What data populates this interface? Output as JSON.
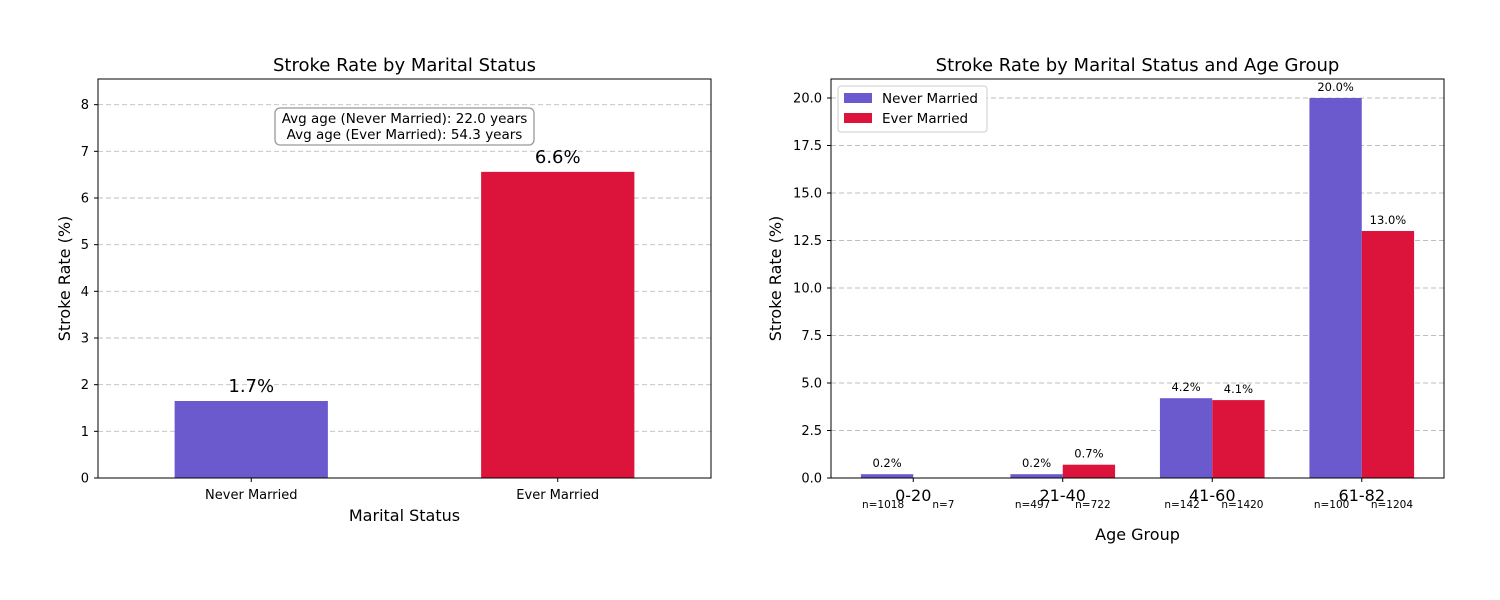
{
  "chart_data": [
    {
      "type": "bar",
      "title": "Stroke Rate by Marital Status",
      "xlabel": "Marital Status",
      "ylabel": "Stroke Rate (%)",
      "categories": [
        "Never Married",
        "Ever Married"
      ],
      "values": [
        1.65,
        6.56
      ],
      "value_labels": [
        "1.7%",
        "6.6%"
      ],
      "colors": [
        "#6a5acd",
        "#dc143c"
      ],
      "ylim": [
        0,
        8.55
      ],
      "yticks": [
        0,
        1,
        2,
        3,
        4,
        5,
        6,
        7,
        8
      ],
      "ytick_labels": [
        "0",
        "1",
        "2",
        "3",
        "4",
        "5",
        "6",
        "7",
        "8"
      ],
      "grid": true,
      "annotation": [
        "Avg age (Never Married): 22.0 years",
        "Avg age (Ever Married): 54.3 years"
      ]
    },
    {
      "type": "bar",
      "title": "Stroke Rate by Marital Status and Age Group",
      "xlabel": "Age Group",
      "ylabel": "Stroke Rate (%)",
      "categories": [
        "0-20",
        "21-40",
        "41-60",
        "61-82"
      ],
      "series": [
        {
          "name": "Never Married",
          "color": "#6a5acd",
          "values": [
            0.2,
            0.2,
            4.2,
            20.0
          ],
          "value_labels": [
            "0.2%",
            "0.2%",
            "4.2%",
            "20.0%"
          ],
          "counts": [
            "n=1018",
            "n=497",
            "n=142",
            "n=100"
          ]
        },
        {
          "name": "Ever Married",
          "color": "#dc143c",
          "values": [
            0.0,
            0.7,
            4.1,
            13.0
          ],
          "value_labels": [
            "",
            "0.7%",
            "4.1%",
            "13.0%"
          ],
          "counts": [
            "n=7",
            "n=722",
            "n=1420",
            "n=1204"
          ]
        }
      ],
      "ylim": [
        0,
        21
      ],
      "yticks": [
        0,
        2.5,
        5,
        7.5,
        10,
        12.5,
        15,
        17.5,
        20
      ],
      "ytick_labels": [
        "0.0",
        "2.5",
        "5.0",
        "7.5",
        "10.0",
        "12.5",
        "15.0",
        "17.5",
        "20.0"
      ],
      "grid": true,
      "legend": "top-left"
    }
  ]
}
